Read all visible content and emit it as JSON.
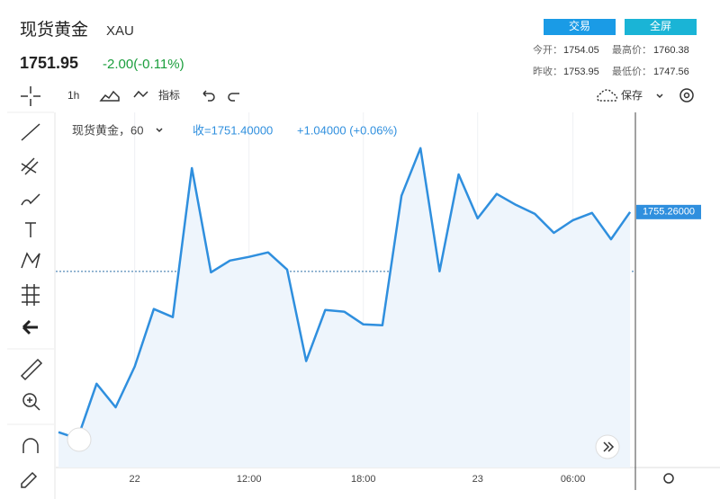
{
  "header": {
    "title": "现货黄金",
    "symbol": "XAU",
    "price": 1751.95,
    "change": "-2.00(-0.11%)",
    "buttons": [
      "交易",
      "全屏"
    ],
    "stats": {
      "open_label": "今开：",
      "open": 1754.05,
      "high_label": "最高价：",
      "high": 1760.38,
      "prev_close_label": "昨收：",
      "prev_close": 1753.95,
      "low_label": "最低价：",
      "low": 1747.56
    }
  },
  "toolbar": {
    "interval": "1h",
    "indicators": "指标",
    "save": "保存"
  },
  "legend": {
    "name": "现货黄金，60",
    "close": "收=1751.40000",
    "change": "+1.04000 (+0.06%)"
  },
  "chart_data": {
    "type": "area",
    "color": "#2f8fde",
    "categories": [
      null,
      null,
      null,
      null,
      "22",
      null,
      null,
      null,
      null,
      null,
      "12:00",
      null,
      null,
      null,
      null,
      null,
      "18:00",
      null,
      null,
      null,
      null,
      null,
      "23",
      null,
      null,
      null,
      null,
      "06:00",
      null,
      null,
      null
    ],
    "values": [
      1750.4,
      1750.26,
      1751.47,
      1750.95,
      1751.85,
      1753.12,
      1752.94,
      1756.23,
      1753.93,
      1754.19,
      1754.27,
      1754.37,
      1753.99,
      1751.97,
      1753.1,
      1753.06,
      1752.78,
      1752.76,
      1755.62,
      1756.67,
      1753.95,
      1756.09,
      1755.12,
      1755.66,
      1755.42,
      1755.22,
      1754.8,
      1755.08,
      1755.24,
      1754.66,
      1755.26
    ],
    "price_label": "1755.26000",
    "ylim": [
      1749.62,
      1757.46
    ]
  }
}
